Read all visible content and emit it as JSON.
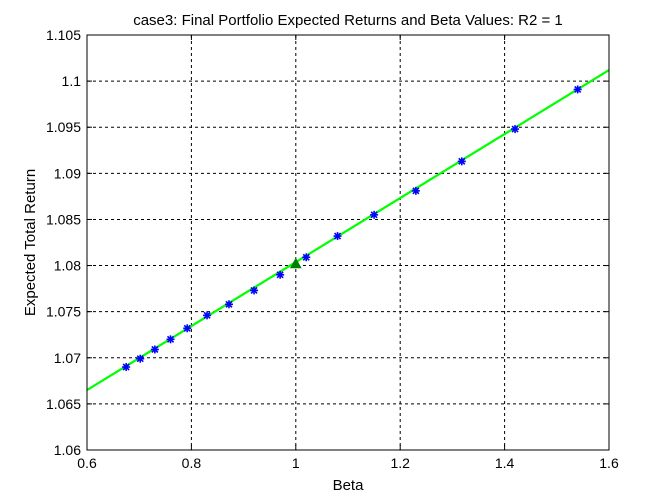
{
  "chart_data": {
    "type": "scatter",
    "title": "case3: Final Portfolio Expected Returns and Beta Values: R2 = 1",
    "xlabel": "Beta",
    "ylabel": "Expected Total Return",
    "xlim": [
      0.6,
      1.6
    ],
    "ylim": [
      1.06,
      1.105
    ],
    "xticks": [
      0.6,
      0.8,
      1,
      1.2,
      1.4,
      1.6
    ],
    "xtick_labels": [
      "0.6",
      "0.8",
      "1",
      "1.2",
      "1.4",
      "1.6"
    ],
    "yticks": [
      1.06,
      1.065,
      1.07,
      1.075,
      1.08,
      1.085,
      1.09,
      1.095,
      1.1,
      1.105
    ],
    "ytick_labels": [
      "1.06",
      "1.065",
      "1.07",
      "1.075",
      "1.08",
      "1.085",
      "1.09",
      "1.095",
      "1.1",
      "1.105"
    ],
    "grid": true,
    "grid_style": "dashed",
    "series": [
      {
        "marker": "asterisk",
        "color": "#0000ff",
        "x": [
          0.675,
          0.702,
          0.73,
          0.76,
          0.792,
          0.83,
          0.872,
          0.92,
          0.97,
          1.02,
          1.08,
          1.15,
          1.23,
          1.318,
          1.42,
          1.54
        ],
        "y": [
          1.069,
          1.0699,
          1.0709,
          1.072,
          1.0732,
          1.0746,
          1.0758,
          1.0773,
          1.079,
          1.0809,
          1.0832,
          1.0855,
          1.0881,
          1.0913,
          1.0948,
          1.0991
        ]
      },
      {
        "marker": "triangle",
        "color": "#008000",
        "x": [
          1.0
        ],
        "y": [
          1.0802
        ]
      },
      {
        "type": "line",
        "color": "#00ff00",
        "x": [
          0.6,
          1.6
        ],
        "y": [
          1.0665,
          1.1012
        ]
      }
    ]
  }
}
